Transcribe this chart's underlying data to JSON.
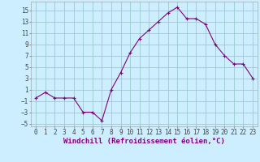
{
  "x": [
    0,
    1,
    2,
    3,
    4,
    5,
    6,
    7,
    8,
    9,
    10,
    11,
    12,
    13,
    14,
    15,
    16,
    17,
    18,
    19,
    20,
    21,
    22,
    23
  ],
  "y": [
    -0.5,
    0.5,
    -0.5,
    -0.5,
    -0.5,
    -3.0,
    -3.0,
    -4.5,
    1.0,
    4.0,
    7.5,
    10.0,
    11.5,
    13.0,
    14.5,
    15.5,
    13.5,
    13.5,
    12.5,
    9.0,
    7.0,
    5.5,
    5.5,
    3.0
  ],
  "line_color": "#800080",
  "marker_color": "#800080",
  "bg_color": "#cceeff",
  "grid_color": "#99cccc",
  "xlabel": "Windchill (Refroidissement éolien,°C)",
  "xlim": [
    -0.5,
    23.5
  ],
  "ylim": [
    -5.5,
    16.5
  ],
  "yticks": [
    -5,
    -3,
    -1,
    1,
    3,
    5,
    7,
    9,
    11,
    13,
    15
  ],
  "xticks": [
    0,
    1,
    2,
    3,
    4,
    5,
    6,
    7,
    8,
    9,
    10,
    11,
    12,
    13,
    14,
    15,
    16,
    17,
    18,
    19,
    20,
    21,
    22,
    23
  ],
  "tick_labelsize": 5.5,
  "xlabel_fontsize": 6.5,
  "line_width": 0.8,
  "marker_size": 2.5
}
